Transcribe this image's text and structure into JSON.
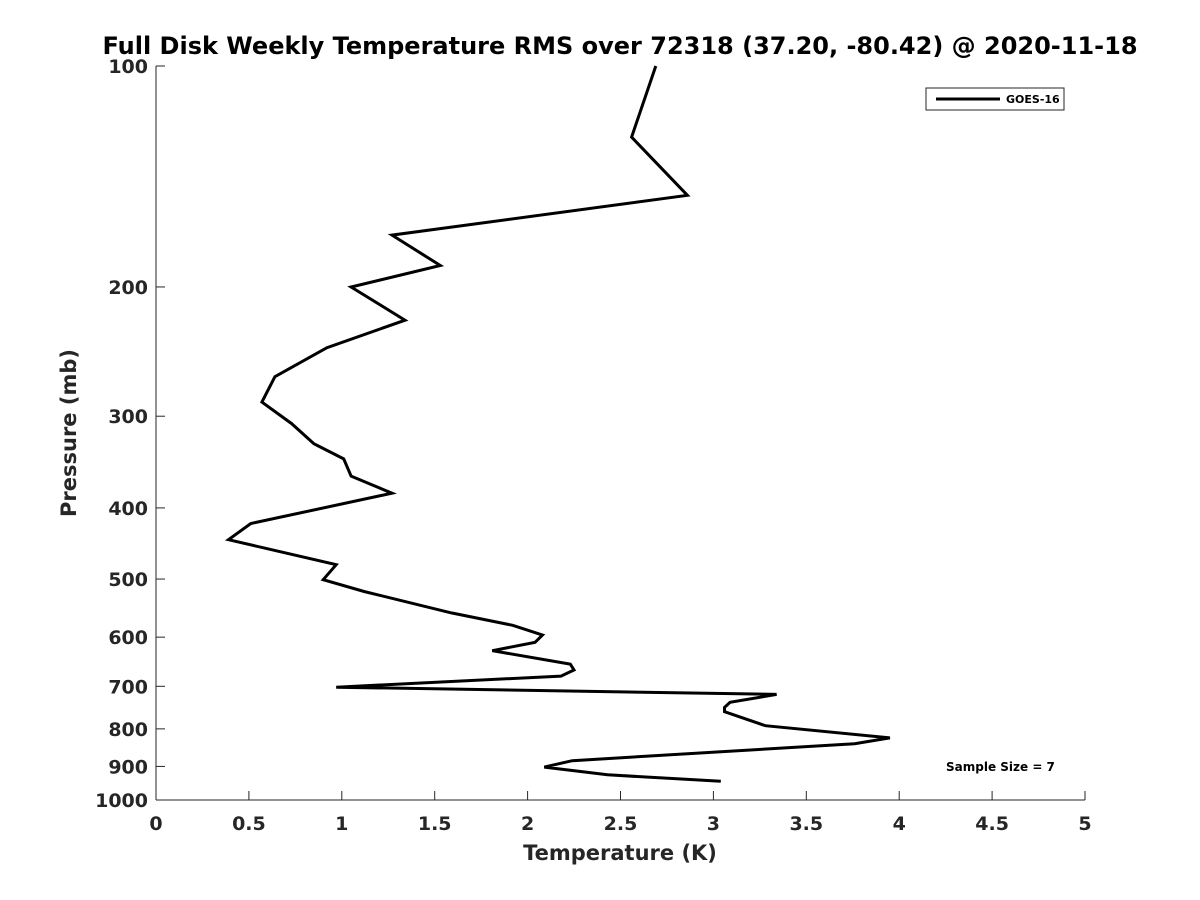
{
  "chart_data": {
    "type": "line",
    "title": "Full Disk Weekly Temperature RMS over 72318 (37.20, -80.42) @ 2020-11-18",
    "xlabel": "Temperature (K)",
    "ylabel": "Pressure (mb)",
    "xlim": [
      0,
      5
    ],
    "ylim": [
      100,
      1000
    ],
    "y_scale": "log",
    "y_reversed": true,
    "grid": false,
    "legend_position": "top-right",
    "x_ticks": [
      "0",
      "0.5",
      "1",
      "1.5",
      "2",
      "2.5",
      "3",
      "3.5",
      "4",
      "4.5",
      "5"
    ],
    "y_ticks": [
      "100",
      "200",
      "300",
      "400",
      "500",
      "600",
      "700",
      "800",
      "900",
      "1000"
    ],
    "annotation": "Sample Size = 7",
    "series": [
      {
        "name": "GOES-16",
        "color": "#000000",
        "points": [
          {
            "x": 2.69,
            "p": 100
          },
          {
            "x": 2.56,
            "p": 125
          },
          {
            "x": 2.86,
            "p": 150
          },
          {
            "x": 1.27,
            "p": 170
          },
          {
            "x": 1.53,
            "p": 187
          },
          {
            "x": 1.05,
            "p": 200
          },
          {
            "x": 1.34,
            "p": 222
          },
          {
            "x": 0.92,
            "p": 242
          },
          {
            "x": 0.64,
            "p": 265
          },
          {
            "x": 0.57,
            "p": 287
          },
          {
            "x": 0.73,
            "p": 307
          },
          {
            "x": 0.85,
            "p": 327
          },
          {
            "x": 1.01,
            "p": 343
          },
          {
            "x": 1.05,
            "p": 362
          },
          {
            "x": 1.27,
            "p": 382
          },
          {
            "x": 0.51,
            "p": 420
          },
          {
            "x": 0.39,
            "p": 442
          },
          {
            "x": 0.97,
            "p": 478
          },
          {
            "x": 0.9,
            "p": 501
          },
          {
            "x": 1.12,
            "p": 520
          },
          {
            "x": 1.59,
            "p": 556
          },
          {
            "x": 1.92,
            "p": 578
          },
          {
            "x": 2.08,
            "p": 596
          },
          {
            "x": 2.04,
            "p": 610
          },
          {
            "x": 1.81,
            "p": 626
          },
          {
            "x": 2.23,
            "p": 653
          },
          {
            "x": 2.25,
            "p": 665
          },
          {
            "x": 2.18,
            "p": 678
          },
          {
            "x": 0.97,
            "p": 702
          },
          {
            "x": 3.34,
            "p": 718
          },
          {
            "x": 3.09,
            "p": 736
          },
          {
            "x": 3.06,
            "p": 748
          },
          {
            "x": 3.06,
            "p": 758
          },
          {
            "x": 3.28,
            "p": 792
          },
          {
            "x": 3.95,
            "p": 823
          },
          {
            "x": 3.76,
            "p": 838
          },
          {
            "x": 2.24,
            "p": 884
          },
          {
            "x": 2.09,
            "p": 902
          },
          {
            "x": 2.43,
            "p": 924
          },
          {
            "x": 3.04,
            "p": 943
          }
        ]
      }
    ]
  }
}
